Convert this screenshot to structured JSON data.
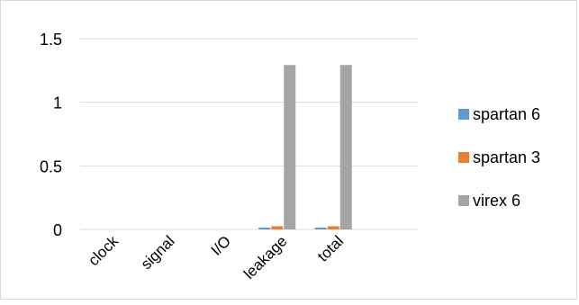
{
  "chart_data": {
    "type": "bar",
    "categories": [
      "clock",
      "signal",
      "I/O",
      "leakage",
      "total",
      ""
    ],
    "series": [
      {
        "name": "spartan 6",
        "color": "#5b9bd5",
        "values": [
          0,
          0,
          0,
          0.014,
          0.014,
          0
        ]
      },
      {
        "name": "spartan 3",
        "color": "#ed7d31",
        "values": [
          0,
          0,
          0,
          0.025,
          0.025,
          0
        ]
      },
      {
        "name": "virex 6",
        "color": "#a5a5a5",
        "values": [
          0,
          0,
          0,
          1.293,
          1.293,
          0
        ]
      }
    ],
    "ylim": [
      0,
      1.5
    ],
    "yticks": [
      "0",
      "0.5",
      "1",
      "1.5"
    ],
    "ytick_values": [
      0,
      0.5,
      1,
      1.5
    ],
    "grid": true,
    "legend_position": "right"
  }
}
